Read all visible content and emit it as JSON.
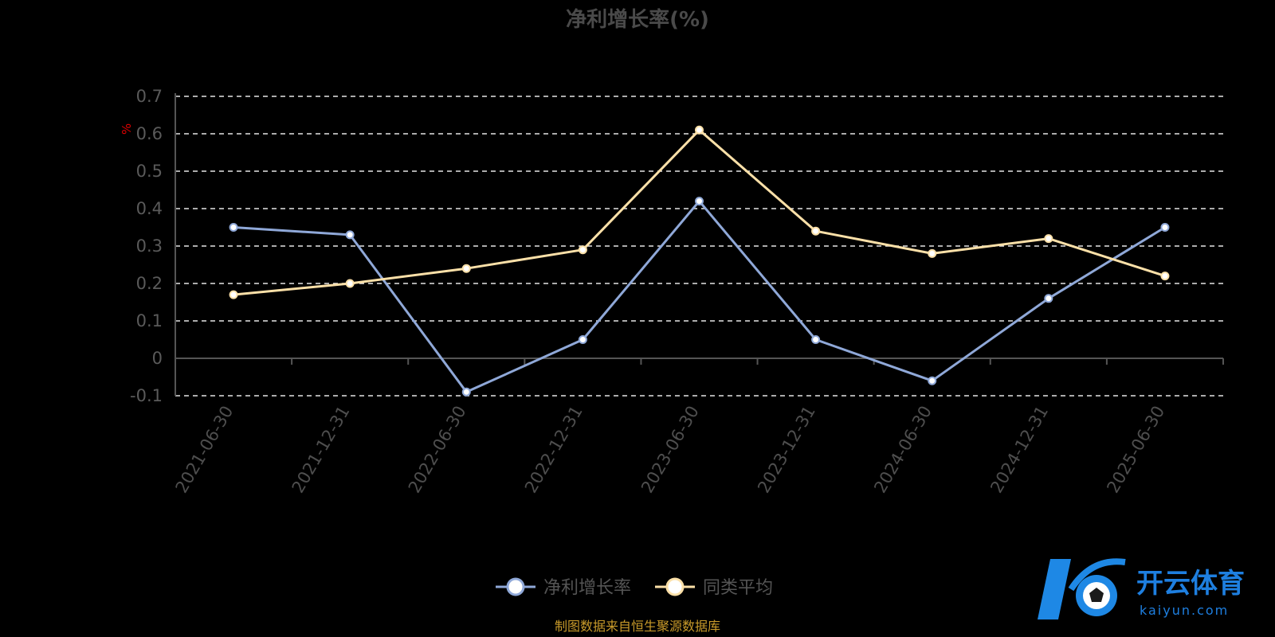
{
  "chart_data": {
    "type": "line",
    "title": "净利增长率(%)",
    "unit_label": "%",
    "categories": [
      "2021-06-30",
      "2021-12-31",
      "2022-06-30",
      "2022-12-31",
      "2023-06-30",
      "2023-12-31",
      "2024-06-30",
      "2024-12-31",
      "2025-06-30"
    ],
    "series": [
      {
        "name": "净利增长率",
        "color": "#8fa8d8",
        "values": [
          0.35,
          0.33,
          -0.09,
          0.05,
          0.42,
          0.05,
          -0.06,
          0.16,
          0.35
        ]
      },
      {
        "name": "同类平均",
        "color": "#fbe0a8",
        "values": [
          0.17,
          0.2,
          0.24,
          0.29,
          0.61,
          0.34,
          0.28,
          0.32,
          0.22
        ]
      }
    ],
    "yticks": [
      "0.7",
      "0.6",
      "0.5",
      "0.4",
      "0.3",
      "0.2",
      "0.1",
      "0",
      "-0.1"
    ],
    "ylim": [
      -0.1,
      0.7
    ],
    "grid": true,
    "legend_position": "bottom-center"
  },
  "source_note": "制图数据来自恒生聚源数据库",
  "watermark": {
    "brand": "开云体育",
    "domain": "kaiyun.com",
    "icon": "kaiyun-logo"
  }
}
